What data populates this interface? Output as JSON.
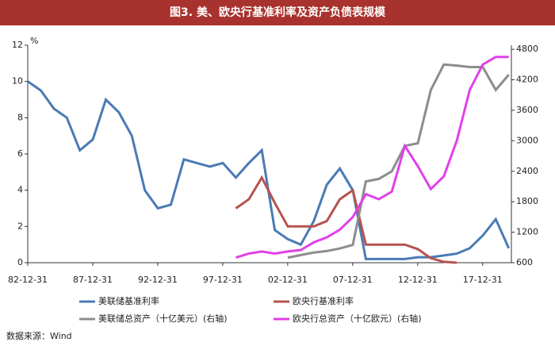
{
  "chart_data": {
    "type": "line",
    "title": "图3. 美、欧央行基准利率及资产负债表规模",
    "y_unit": "%",
    "source": "数据来源：Wind",
    "x": [
      1983,
      1984,
      1985,
      1986,
      1987,
      1988,
      1989,
      1990,
      1991,
      1992,
      1993,
      1994,
      1995,
      1996,
      1997,
      1998,
      1999,
      2000,
      2001,
      2002,
      2003,
      2004,
      2005,
      2006,
      2007,
      2008,
      2009,
      2010,
      2011,
      2012,
      2013,
      2014,
      2015,
      2016,
      2017,
      2018,
      2019,
      2020
    ],
    "xlim": [
      1982.99,
      2020.2
    ],
    "xticks": [
      {
        "value": 1982.99,
        "label": "82-12-31"
      },
      {
        "value": 1987.99,
        "label": "87-12-31"
      },
      {
        "value": 1992.99,
        "label": "92-12-31"
      },
      {
        "value": 1997.99,
        "label": "97-12-31"
      },
      {
        "value": 2002.99,
        "label": "02-12-31"
      },
      {
        "value": 2007.99,
        "label": "07-12-31"
      },
      {
        "value": 2012.99,
        "label": "12-12-31"
      },
      {
        "value": 2017.99,
        "label": "17-12-31"
      }
    ],
    "ylim": [
      0,
      12
    ],
    "yticks": [
      0,
      2,
      4,
      6,
      8,
      10,
      12
    ],
    "y2lim": [
      600,
      4880
    ],
    "y2ticks": [
      600,
      1200,
      1800,
      2400,
      3000,
      3600,
      4200,
      4800
    ],
    "series": [
      {
        "name": "美联储基准利率",
        "color": "#4a7ab5",
        "values": [
          10.0,
          9.5,
          8.5,
          8.0,
          6.2,
          6.8,
          9.0,
          8.3,
          7.0,
          4.0,
          3.0,
          3.2,
          5.7,
          5.5,
          5.3,
          5.5,
          4.7,
          5.5,
          6.2,
          1.8,
          1.3,
          1.0,
          2.3,
          4.3,
          5.2,
          4.0,
          0.2,
          0.2,
          0.2,
          0.2,
          0.3,
          0.3,
          0.4,
          0.5,
          0.8,
          1.5,
          2.4,
          0.8
        ]
      },
      {
        "name": "欧央行基准利率",
        "color": "#b5534f",
        "values": [
          null,
          null,
          null,
          null,
          null,
          null,
          null,
          null,
          null,
          null,
          null,
          null,
          null,
          null,
          null,
          null,
          3.0,
          3.5,
          4.7,
          3.3,
          2.0,
          2.0,
          2.0,
          2.3,
          3.5,
          4.0,
          1.0,
          1.0,
          1.0,
          1.0,
          0.75,
          0.25,
          0.05,
          0.0,
          null,
          null,
          null,
          null
        ]
      },
      {
        "name": "美联储总资产（十亿美元）(右轴)",
        "color": "#8c8c8c",
        "axis": "y2",
        "values": [
          null,
          null,
          null,
          null,
          null,
          null,
          null,
          null,
          null,
          null,
          null,
          null,
          null,
          null,
          null,
          null,
          null,
          null,
          null,
          null,
          700,
          750,
          800,
          830,
          880,
          950,
          2200,
          2250,
          2400,
          2900,
          2950,
          4000,
          4500,
          4480,
          4450,
          4450,
          4000,
          4300
        ]
      },
      {
        "name": "欧央行总资产（十亿欧元）(右轴)",
        "color": "#e040e8",
        "axis": "y2",
        "values": [
          null,
          null,
          null,
          null,
          null,
          null,
          null,
          null,
          null,
          null,
          null,
          null,
          null,
          null,
          null,
          null,
          700,
          780,
          820,
          780,
          820,
          850,
          1000,
          1100,
          1250,
          1500,
          1950,
          1850,
          2000,
          2900,
          2500,
          2050,
          2300,
          3000,
          4000,
          4500,
          4650,
          4650
        ]
      }
    ]
  }
}
